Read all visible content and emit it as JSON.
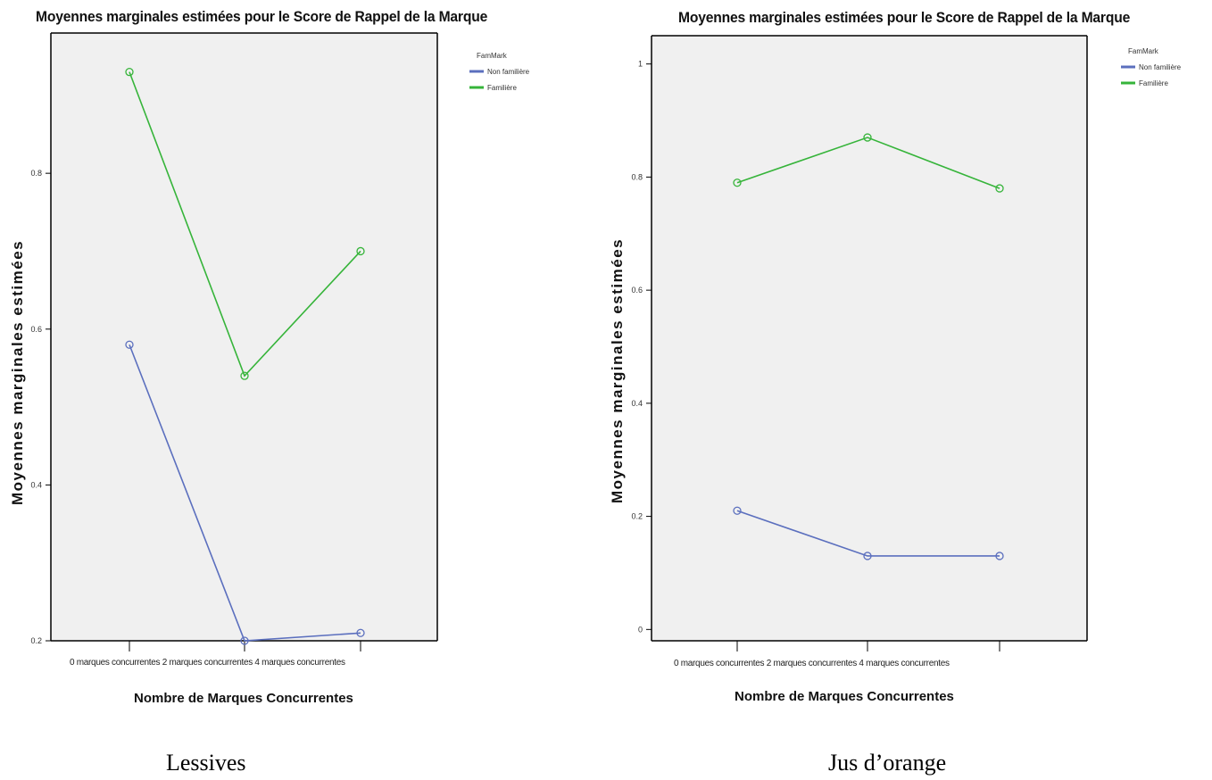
{
  "chart_data": [
    {
      "type": "line",
      "title": "Moyennes marginales estimées pour le Score de Rappel de la Marque",
      "xlabel": "Nombre de Marques Concurrentes",
      "ylabel": "Moyennes marginales estimées",
      "categories_text": "0 marques concurrentes 2 marques concurrentes 4 marques concurrentes",
      "categories": [
        "0 marques concurrentes",
        "2 marques concurrentes",
        "4 marques concurrentes"
      ],
      "y_ticks": [
        0.2,
        0.4,
        0.6,
        0.8
      ],
      "ylim": [
        0.2,
        0.98
      ],
      "legend_title": "FamMark",
      "legend_position": "top-right",
      "grid": false,
      "series": [
        {
          "name": "Non familière",
          "color": "#5b6fbe",
          "values": [
            0.58,
            0.2,
            0.21
          ]
        },
        {
          "name": "Familière",
          "color": "#36b43a",
          "values": [
            0.93,
            0.54,
            0.7
          ]
        }
      ],
      "caption": "Lessives"
    },
    {
      "type": "line",
      "title": "Moyennes marginales estimées pour le Score de Rappel de la Marque",
      "xlabel": "Nombre de Marques Concurrentes",
      "ylabel": "Moyennes marginales estimées",
      "categories_text": "0 marques concurrentes 2 marques concurrentes 4 marques concurrentes",
      "categories": [
        "0 marques concurrentes",
        "2 marques concurrentes",
        "4 marques concurrentes"
      ],
      "y_ticks": [
        0,
        0.2,
        0.4,
        0.6,
        0.8,
        1
      ],
      "ylim": [
        -0.02,
        1.05
      ],
      "legend_title": "FamMark",
      "legend_position": "top-right",
      "grid": false,
      "series": [
        {
          "name": "Non familière",
          "color": "#5b6fbe",
          "values": [
            0.21,
            0.13,
            0.13
          ]
        },
        {
          "name": "Familière",
          "color": "#36b43a",
          "values": [
            0.79,
            0.87,
            0.78
          ]
        }
      ],
      "caption": "Jus d’orange"
    }
  ]
}
